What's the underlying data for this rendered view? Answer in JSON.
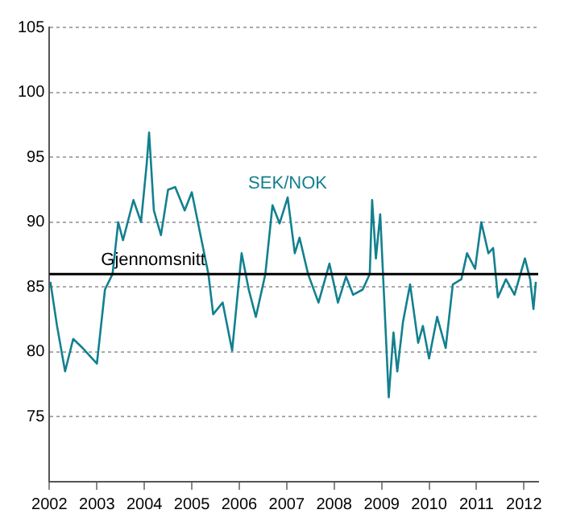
{
  "chart_data": {
    "type": "line",
    "x": [
      2002.02,
      2002.16,
      2002.33,
      2002.5,
      2002.7,
      2003.0,
      2003.17,
      2003.33,
      2003.45,
      2003.55,
      2003.77,
      2003.93,
      2004.05,
      2004.1,
      2004.2,
      2004.35,
      2004.5,
      2004.65,
      2004.85,
      2005.0,
      2005.15,
      2005.35,
      2005.45,
      2005.65,
      2005.85,
      2006.05,
      2006.2,
      2006.35,
      2006.55,
      2006.7,
      2006.85,
      2007.02,
      2007.17,
      2007.27,
      2007.45,
      2007.67,
      2007.9,
      2008.08,
      2008.25,
      2008.4,
      2008.6,
      2008.75,
      2008.8,
      2008.88,
      2008.97,
      2009.05,
      2009.15,
      2009.25,
      2009.33,
      2009.45,
      2009.6,
      2009.77,
      2009.87,
      2010.0,
      2010.17,
      2010.35,
      2010.5,
      2010.68,
      2010.8,
      2010.97,
      2011.1,
      2011.25,
      2011.35,
      2011.45,
      2011.62,
      2011.8,
      2012.02,
      2012.13,
      2012.2,
      2012.25
    ],
    "series": [
      {
        "name": "SEK/NOK",
        "color": "#13808f",
        "values": [
          85.4,
          82,
          78.5,
          81,
          80.3,
          79.1,
          84.8,
          86,
          90,
          88.6,
          91.7,
          90,
          94.5,
          96.9,
          90.9,
          89,
          92.5,
          92.7,
          90.9,
          92.3,
          89.6,
          86,
          82.9,
          83.8,
          80.1,
          87.6,
          84.8,
          82.7,
          86,
          91.3,
          89.9,
          91.9,
          87.6,
          88.8,
          86,
          83.8,
          86.8,
          83.8,
          85.8,
          84.4,
          84.8,
          86,
          91.7,
          87.2,
          90.6,
          84.4,
          76.5,
          81.5,
          78.5,
          82.3,
          85.2,
          80.7,
          82,
          79.5,
          82.7,
          80.3,
          85.2,
          85.6,
          87.6,
          86.4,
          90,
          87.6,
          88,
          84.2,
          85.6,
          84.4,
          87.2,
          85.6,
          83.3,
          85.4
        ]
      }
    ],
    "xlim": [
      2002,
      2012.3
    ],
    "xticks": [
      2002,
      2003,
      2004,
      2005,
      2006,
      2007,
      2008,
      2009,
      2010,
      2011,
      2012
    ],
    "ylim": [
      70,
      105
    ],
    "yticks": [
      75,
      80,
      85,
      90,
      95,
      100,
      105
    ],
    "ref_lines": [
      {
        "axis": "y",
        "value": 86,
        "label": "Gjennomsnitt",
        "color": "#000000"
      }
    ],
    "grid": "y",
    "legend": false,
    "marker": "none",
    "line_style": "solid"
  }
}
